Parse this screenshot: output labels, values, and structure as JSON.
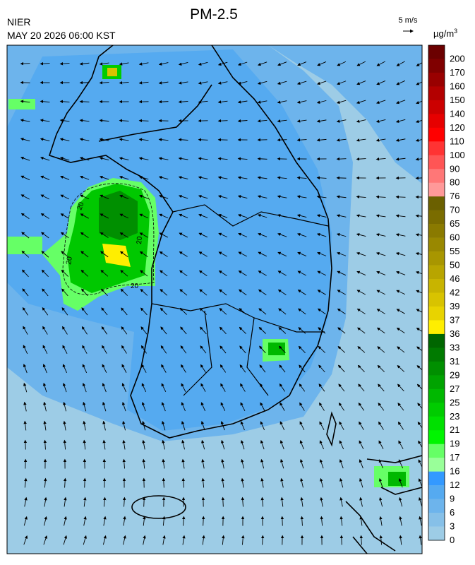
{
  "header": {
    "title": "PM-2.5",
    "agency": "NIER",
    "timestamp": "MAY 20 2026 06:00 KST",
    "wind_scale": "5 m/s",
    "unit_base": "µg/m",
    "unit_exponent": "3"
  },
  "map": {
    "contour_labels": [
      "20",
      "20",
      "20",
      "20"
    ]
  },
  "colorbar": {
    "labels": [
      200,
      170,
      160,
      150,
      140,
      120,
      110,
      100,
      90,
      80,
      76,
      70,
      65,
      60,
      55,
      50,
      46,
      42,
      39,
      37,
      36,
      33,
      31,
      29,
      27,
      25,
      23,
      21,
      19,
      17,
      16,
      12,
      9,
      6,
      3,
      0
    ],
    "colors": [
      "#6b0000",
      "#800000",
      "#990000",
      "#b30000",
      "#cc0000",
      "#e60000",
      "#ff0000",
      "#ff3333",
      "#ff5555",
      "#ff7777",
      "#ff9999",
      "#6b6000",
      "#7a6c00",
      "#8a7a00",
      "#998800",
      "#a89600",
      "#b8a500",
      "#c8b400",
      "#d8c300",
      "#e8d300",
      "#ffee00",
      "#006600",
      "#007a00",
      "#008f00",
      "#00a300",
      "#00b800",
      "#00cc00",
      "#00e000",
      "#00f500",
      "#66ff66",
      "#99ff99",
      "#3399ff",
      "#55aaf0",
      "#6db4ec",
      "#86c0e8",
      "#9dcce6"
    ]
  }
}
